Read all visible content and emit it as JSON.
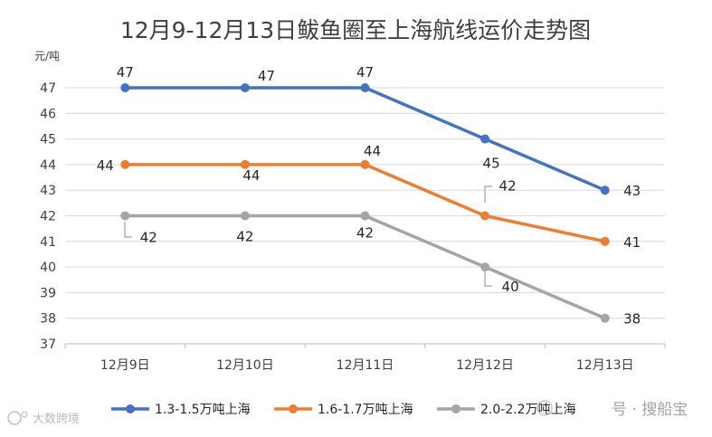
{
  "chart_data": {
    "type": "line",
    "title": "12月9-12月13日鲅鱼圈至上海航线运价走势图",
    "ylabel": "元/吨",
    "xlabel": "",
    "categories": [
      "12月9日",
      "12月10日",
      "12月11日",
      "12月12日",
      "12月13日"
    ],
    "ylim": [
      37,
      47
    ],
    "yticks": [
      37,
      38,
      39,
      40,
      41,
      42,
      43,
      44,
      45,
      46,
      47
    ],
    "grid": true,
    "legend_position": "bottom",
    "series": [
      {
        "name": "1.3-1.5万吨上海",
        "color": "#4472C4",
        "values": [
          47,
          47,
          47,
          45,
          43
        ]
      },
      {
        "name": "1.6-1.7万吨上海",
        "color": "#ED7D31",
        "values": [
          44,
          44,
          44,
          42,
          41
        ]
      },
      {
        "name": "2.0-2.2万吨上海",
        "color": "#A5A5A5",
        "values": [
          42,
          42,
          42,
          40,
          38
        ]
      }
    ]
  },
  "watermark": {
    "left_text": "大数跨境",
    "right_text": "号 · 搜船宝"
  }
}
